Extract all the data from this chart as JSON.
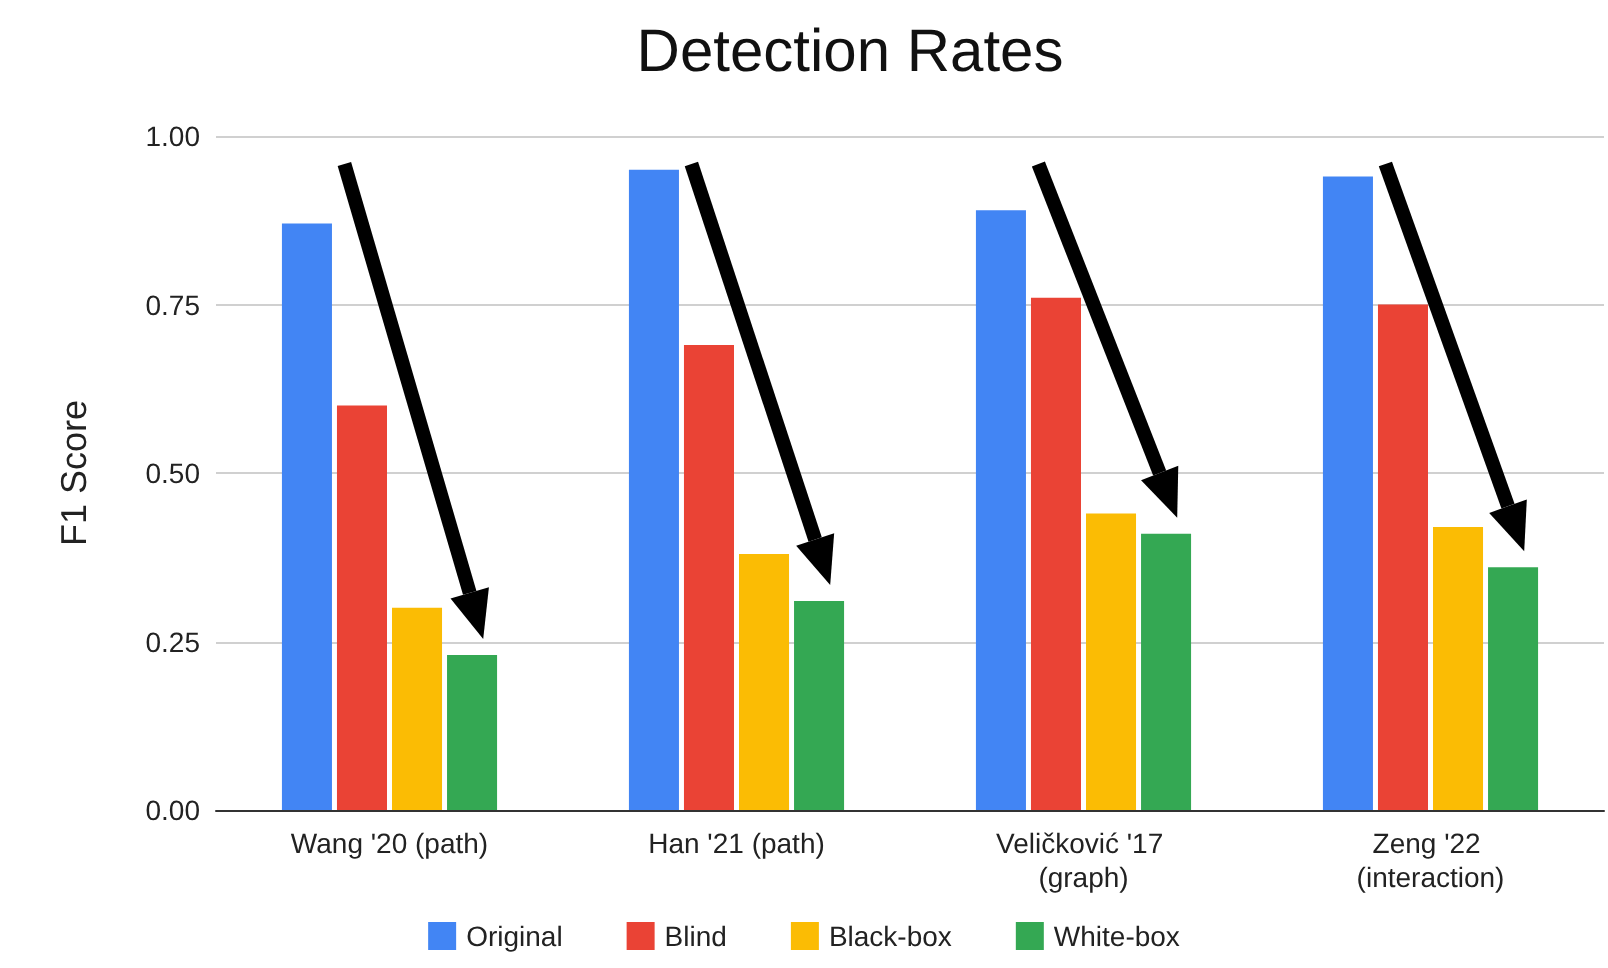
{
  "chart_data": {
    "type": "bar",
    "title": "Detection Rates",
    "ylabel": "F1 Score",
    "categories": [
      "Wang '20 (path)",
      "Han '21 (path)",
      "Veličković '17 (graph)",
      "Zeng '22 (interaction)"
    ],
    "series": [
      {
        "name": "Original",
        "color": "#4285f4",
        "values": [
          0.87,
          0.95,
          0.89,
          0.94
        ]
      },
      {
        "name": "Blind",
        "color": "#ea4335",
        "values": [
          0.6,
          0.69,
          0.76,
          0.75
        ]
      },
      {
        "name": "Black-box",
        "color": "#fbbc04",
        "values": [
          0.3,
          0.38,
          0.44,
          0.42
        ]
      },
      {
        "name": "White-box",
        "color": "#34a853",
        "values": [
          0.23,
          0.31,
          0.41,
          0.36
        ]
      }
    ],
    "ylim": [
      0,
      1
    ],
    "yticks": [
      {
        "value": 0,
        "label": "0.00"
      },
      {
        "value": 0.25,
        "label": "0.25"
      },
      {
        "value": 0.5,
        "label": "0.50"
      },
      {
        "value": 0.75,
        "label": "0.75"
      },
      {
        "value": 1,
        "label": "1.00"
      }
    ],
    "grid": "y",
    "legend": "bottom"
  }
}
